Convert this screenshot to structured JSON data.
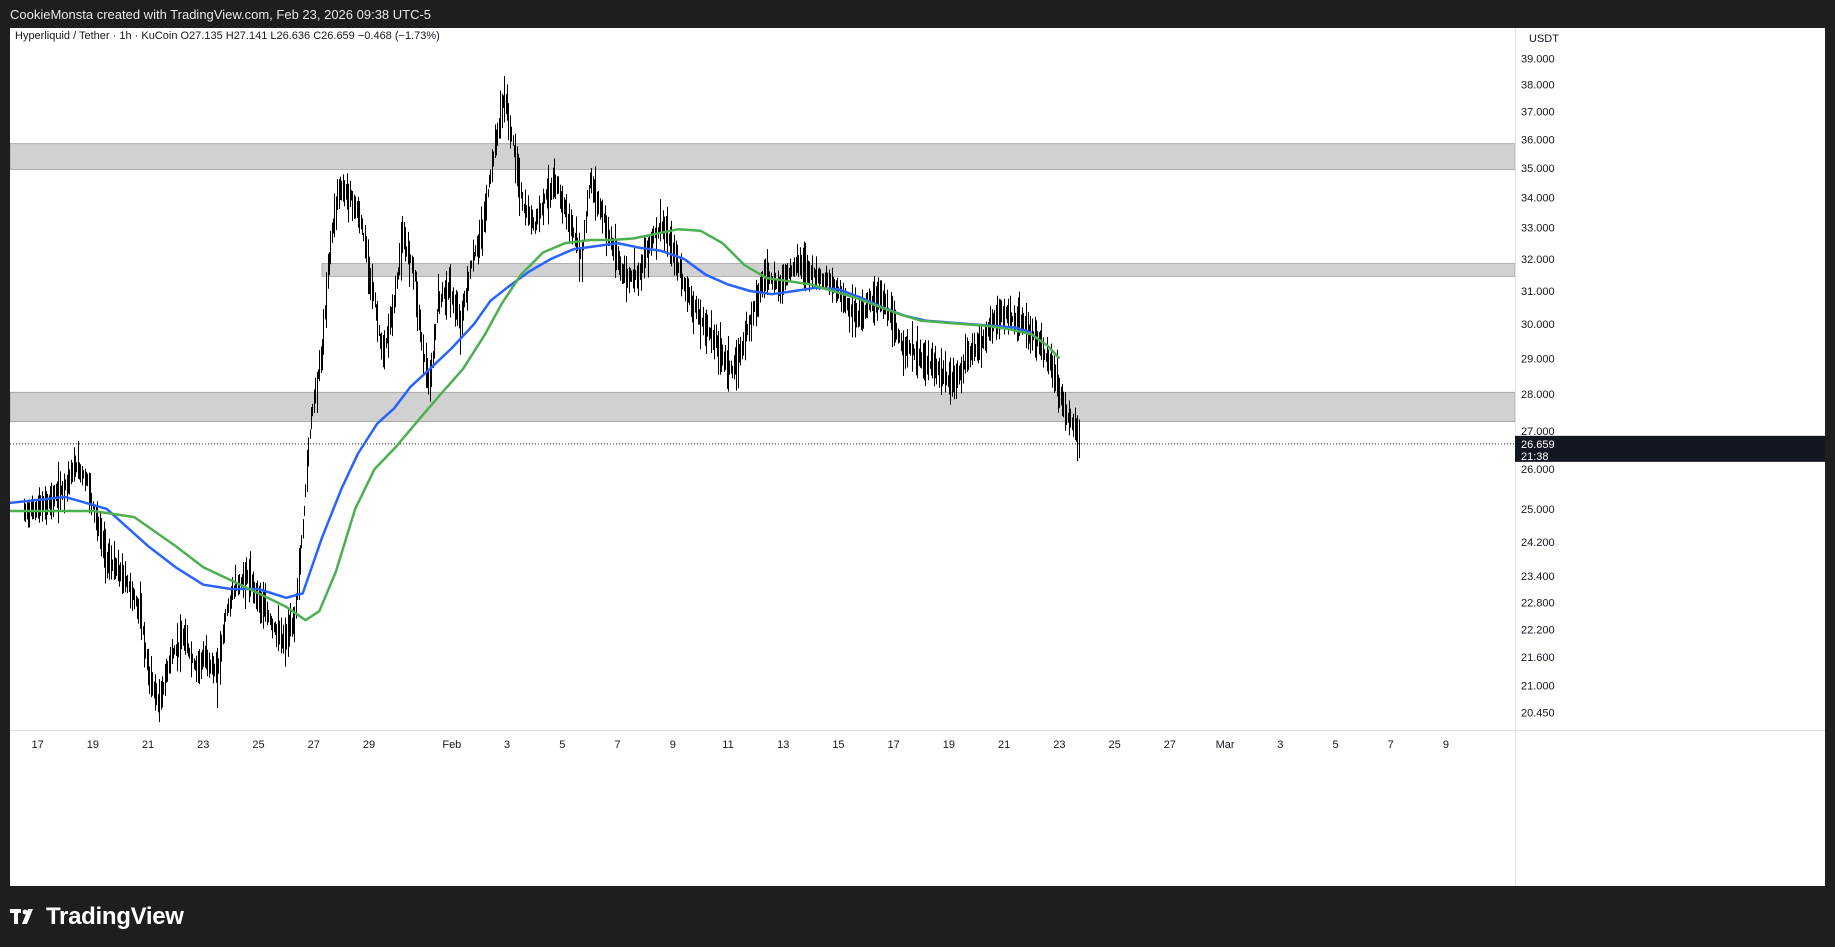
{
  "header": {
    "attribution": "CookieMonsta created with TradingView.com, Feb 23, 2026 09:38 UTC-5"
  },
  "footer": {
    "logo_text": "TradingView"
  },
  "colors": {
    "ma_fast": "#2962ff",
    "ma_slow": "#4caf50",
    "zone_fill": "#d1d1d1",
    "candle": "#000000",
    "price_label_bg": "#131722"
  },
  "chart_data": {
    "type": "candlestick",
    "legend": "Hyperliquid / Tether · 1h · KuCoin  O27.135  H27.141  L26.636  C26.659  −0.468 (−1.73%)",
    "y_unit_label": "USDT",
    "y_scale": "log",
    "ylim": [
      20.1,
      39.4
    ],
    "y_ticks": [
      "39.000",
      "38.000",
      "37.000",
      "36.000",
      "35.000",
      "34.000",
      "33.000",
      "32.000",
      "31.000",
      "30.000",
      "29.000",
      "28.000",
      "27.000",
      "26.000",
      "25.000",
      "24.200",
      "23.400",
      "22.800",
      "22.200",
      "21.600",
      "21.000",
      "20.450"
    ],
    "x_ticks": [
      {
        "label": "17",
        "day": 17
      },
      {
        "label": "19",
        "day": 19
      },
      {
        "label": "21",
        "day": 21
      },
      {
        "label": "23",
        "day": 23
      },
      {
        "label": "25",
        "day": 25
      },
      {
        "label": "27",
        "day": 27
      },
      {
        "label": "29",
        "day": 29
      },
      {
        "label": "Feb",
        "day": 32
      },
      {
        "label": "3",
        "day": 34
      },
      {
        "label": "5",
        "day": 36
      },
      {
        "label": "7",
        "day": 38
      },
      {
        "label": "9",
        "day": 40
      },
      {
        "label": "11",
        "day": 42
      },
      {
        "label": "13",
        "day": 44
      },
      {
        "label": "15",
        "day": 46
      },
      {
        "label": "17",
        "day": 48
      },
      {
        "label": "19",
        "day": 50
      },
      {
        "label": "21",
        "day": 52
      },
      {
        "label": "23",
        "day": 54
      },
      {
        "label": "25",
        "day": 56
      },
      {
        "label": "27",
        "day": 58
      },
      {
        "label": "Mar",
        "day": 60
      },
      {
        "label": "3",
        "day": 62
      },
      {
        "label": "5",
        "day": 64
      },
      {
        "label": "7",
        "day": 66
      },
      {
        "label": "9",
        "day": 68
      }
    ],
    "current_price": {
      "value": 26.659,
      "label": "26.659",
      "countdown": "21:38"
    },
    "zones": [
      {
        "from": 34.95,
        "to": 35.85
      },
      {
        "from": 31.45,
        "to": 31.85
      },
      {
        "from": 27.25,
        "to": 28.05
      }
    ],
    "price_path": [
      [
        16.5,
        24.9
      ],
      [
        17.3,
        25.1
      ],
      [
        17.9,
        25.5
      ],
      [
        18.4,
        26.1
      ],
      [
        18.8,
        25.7
      ],
      [
        19.1,
        24.8
      ],
      [
        19.5,
        23.8
      ],
      [
        20.2,
        23.3
      ],
      [
        20.7,
        22.6
      ],
      [
        21.0,
        21.3
      ],
      [
        21.4,
        20.6
      ],
      [
        21.8,
        21.6
      ],
      [
        22.3,
        22.0
      ],
      [
        22.7,
        21.4
      ],
      [
        23.1,
        21.6
      ],
      [
        23.5,
        21.2
      ],
      [
        23.8,
        22.5
      ],
      [
        24.1,
        23.1
      ],
      [
        24.6,
        23.4
      ],
      [
        25.0,
        22.9
      ],
      [
        25.5,
        22.3
      ],
      [
        25.9,
        21.9
      ],
      [
        26.3,
        22.4
      ],
      [
        26.6,
        24.5
      ],
      [
        26.9,
        27.4
      ],
      [
        27.3,
        29.2
      ],
      [
        27.6,
        32.5
      ],
      [
        27.9,
        34.3
      ],
      [
        28.3,
        34.1
      ],
      [
        28.7,
        33.2
      ],
      [
        29.1,
        31.2
      ],
      [
        29.5,
        29.0
      ],
      [
        29.9,
        30.6
      ],
      [
        30.2,
        32.6
      ],
      [
        30.6,
        31.8
      ],
      [
        30.9,
        29.5
      ],
      [
        31.2,
        28.1
      ],
      [
        31.5,
        30.7
      ],
      [
        31.9,
        31.1
      ],
      [
        32.3,
        30.0
      ],
      [
        32.7,
        31.8
      ],
      [
        33.1,
        32.9
      ],
      [
        33.5,
        35.4
      ],
      [
        33.9,
        37.6
      ],
      [
        34.2,
        35.9
      ],
      [
        34.6,
        33.6
      ],
      [
        35.0,
        33.1
      ],
      [
        35.4,
        34.1
      ],
      [
        35.8,
        34.4
      ],
      [
        36.2,
        33.3
      ],
      [
        36.7,
        32.0
      ],
      [
        37.0,
        34.6
      ],
      [
        37.5,
        33.3
      ],
      [
        37.9,
        32.1
      ],
      [
        38.3,
        31.4
      ],
      [
        38.8,
        31.6
      ],
      [
        39.2,
        32.6
      ],
      [
        39.6,
        33.1
      ],
      [
        40.1,
        32.0
      ],
      [
        40.5,
        31.0
      ],
      [
        41.0,
        30.1
      ],
      [
        41.4,
        29.7
      ],
      [
        41.8,
        29.1
      ],
      [
        42.2,
        28.6
      ],
      [
        42.6,
        29.6
      ],
      [
        43.0,
        30.7
      ],
      [
        43.4,
        31.6
      ],
      [
        43.8,
        31.1
      ],
      [
        44.2,
        31.6
      ],
      [
        44.6,
        31.9
      ],
      [
        45.0,
        31.6
      ],
      [
        45.4,
        31.4
      ],
      [
        45.9,
        31.1
      ],
      [
        46.3,
        30.6
      ],
      [
        46.7,
        30.2
      ],
      [
        47.1,
        30.6
      ],
      [
        47.5,
        30.9
      ],
      [
        47.9,
        30.1
      ],
      [
        48.3,
        29.4
      ],
      [
        48.7,
        29.2
      ],
      [
        49.1,
        28.9
      ],
      [
        49.6,
        28.7
      ],
      [
        50.0,
        28.3
      ],
      [
        50.4,
        28.6
      ],
      [
        50.8,
        29.2
      ],
      [
        51.2,
        29.5
      ],
      [
        51.6,
        30.1
      ],
      [
        52.0,
        30.3
      ],
      [
        52.4,
        30.1
      ],
      [
        52.8,
        29.9
      ],
      [
        53.2,
        29.5
      ],
      [
        53.6,
        28.9
      ],
      [
        53.9,
        28.4
      ],
      [
        54.2,
        27.5
      ],
      [
        54.5,
        27.2
      ],
      [
        54.7,
        26.66
      ]
    ],
    "series": [
      {
        "name": "MA fast",
        "points": [
          [
            16.0,
            25.15
          ],
          [
            18.0,
            25.3
          ],
          [
            19.5,
            25.0
          ],
          [
            21.0,
            24.1
          ],
          [
            22.0,
            23.6
          ],
          [
            23.0,
            23.2
          ],
          [
            24.0,
            23.1
          ],
          [
            25.0,
            23.1
          ],
          [
            26.0,
            22.9
          ],
          [
            26.6,
            23.0
          ],
          [
            27.3,
            24.3
          ],
          [
            28.0,
            25.5
          ],
          [
            28.6,
            26.4
          ],
          [
            29.3,
            27.2
          ],
          [
            29.9,
            27.6
          ],
          [
            30.5,
            28.2
          ],
          [
            31.2,
            28.7
          ],
          [
            32.0,
            29.3
          ],
          [
            32.8,
            30.0
          ],
          [
            33.4,
            30.7
          ],
          [
            34.0,
            31.1
          ],
          [
            34.8,
            31.6
          ],
          [
            35.6,
            32.0
          ],
          [
            36.4,
            32.3
          ],
          [
            37.2,
            32.4
          ],
          [
            38.0,
            32.5
          ],
          [
            38.8,
            32.35
          ],
          [
            39.6,
            32.25
          ],
          [
            40.4,
            32.0
          ],
          [
            41.2,
            31.5
          ],
          [
            42.0,
            31.2
          ],
          [
            42.8,
            31.0
          ],
          [
            43.6,
            30.9
          ],
          [
            44.4,
            31.0
          ],
          [
            45.2,
            31.1
          ],
          [
            46.0,
            31.05
          ],
          [
            46.8,
            30.8
          ],
          [
            47.6,
            30.5
          ],
          [
            48.4,
            30.25
          ],
          [
            49.2,
            30.1
          ],
          [
            50.0,
            30.05
          ],
          [
            50.8,
            30.0
          ],
          [
            51.6,
            29.95
          ],
          [
            52.4,
            29.9
          ],
          [
            53.0,
            29.75
          ]
        ]
      },
      {
        "name": "MA slow",
        "points": [
          [
            16.0,
            24.95
          ],
          [
            17.5,
            24.95
          ],
          [
            19.0,
            24.95
          ],
          [
            20.5,
            24.8
          ],
          [
            22.0,
            24.1
          ],
          [
            23.0,
            23.6
          ],
          [
            24.0,
            23.3
          ],
          [
            25.0,
            23.0
          ],
          [
            26.0,
            22.7
          ],
          [
            26.7,
            22.4
          ],
          [
            27.2,
            22.6
          ],
          [
            27.8,
            23.5
          ],
          [
            28.5,
            25.0
          ],
          [
            29.2,
            26.0
          ],
          [
            30.0,
            26.6
          ],
          [
            30.8,
            27.3
          ],
          [
            31.6,
            28.0
          ],
          [
            32.4,
            28.7
          ],
          [
            33.2,
            29.7
          ],
          [
            33.8,
            30.6
          ],
          [
            34.5,
            31.5
          ],
          [
            35.3,
            32.2
          ],
          [
            36.1,
            32.5
          ],
          [
            37.0,
            32.6
          ],
          [
            37.8,
            32.6
          ],
          [
            38.6,
            32.65
          ],
          [
            39.4,
            32.8
          ],
          [
            40.2,
            32.95
          ],
          [
            41.0,
            32.9
          ],
          [
            41.8,
            32.5
          ],
          [
            42.6,
            31.8
          ],
          [
            43.4,
            31.4
          ],
          [
            44.2,
            31.3
          ],
          [
            45.0,
            31.2
          ],
          [
            45.8,
            31.0
          ],
          [
            46.6,
            30.8
          ],
          [
            47.4,
            30.55
          ],
          [
            48.2,
            30.3
          ],
          [
            49.0,
            30.1
          ],
          [
            49.8,
            30.05
          ],
          [
            50.6,
            30.0
          ],
          [
            51.4,
            29.95
          ],
          [
            52.2,
            29.85
          ],
          [
            53.0,
            29.7
          ],
          [
            53.6,
            29.35
          ],
          [
            54.0,
            29.0
          ]
        ]
      }
    ]
  }
}
